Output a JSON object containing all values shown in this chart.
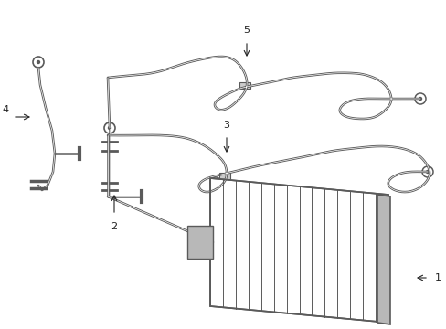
{
  "bg_color": "#ffffff",
  "line_color": "#5a5a5a",
  "label_color": "#222222",
  "label_fontsize": 8,
  "fig_width": 4.89,
  "fig_height": 3.6,
  "dpi": 100
}
